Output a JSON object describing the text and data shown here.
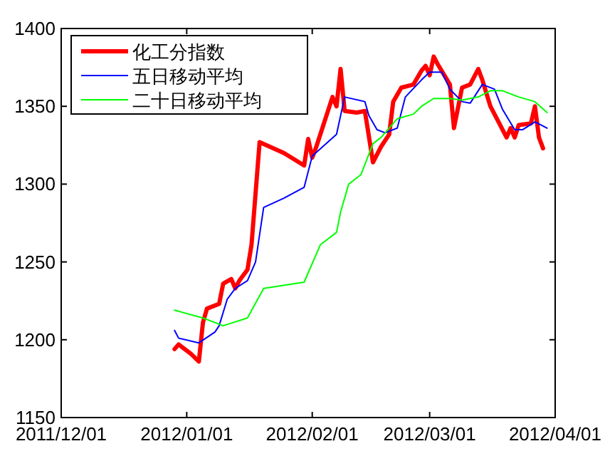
{
  "chart_data": {
    "type": "line",
    "legend": "top left",
    "grid": false,
    "xlim": [
      "2011-12-01",
      "2012-04-01"
    ],
    "xticks": [
      {
        "value": "2011-12-01",
        "label": "2011/12/01"
      },
      {
        "value": "2012-01-01",
        "label": "2012/01/01"
      },
      {
        "value": "2012-02-01",
        "label": "2012/02/01"
      },
      {
        "value": "2012-03-01",
        "label": "2012/03/01"
      },
      {
        "value": "2012-04-01",
        "label": "2012/04/01"
      }
    ],
    "ylim": [
      1150,
      1400
    ],
    "yticks": [
      1150,
      1200,
      1250,
      1300,
      1350,
      1400
    ],
    "series": [
      {
        "name": "化工分指数",
        "color": "#ff0000",
        "x": [
          "2011-12-29",
          "2011-12-30",
          "2012-01-02",
          "2012-01-04",
          "2012-01-05",
          "2012-01-06",
          "2012-01-09",
          "2012-01-10",
          "2012-01-12",
          "2012-01-13",
          "2012-01-14",
          "2012-01-16",
          "2012-01-17",
          "2012-01-19",
          "2012-01-25",
          "2012-01-30",
          "2012-01-31",
          "2012-02-01",
          "2012-02-02",
          "2012-02-05",
          "2012-02-06",
          "2012-02-07",
          "2012-02-08",
          "2012-02-09",
          "2012-02-12",
          "2012-02-14",
          "2012-02-16",
          "2012-02-18",
          "2012-02-20",
          "2012-02-21",
          "2012-02-23",
          "2012-02-26",
          "2012-02-28",
          "2012-02-29",
          "2012-03-01",
          "2012-03-02",
          "2012-03-03",
          "2012-03-06",
          "2012-03-07",
          "2012-03-09",
          "2012-03-11",
          "2012-03-13",
          "2012-03-14",
          "2012-03-16",
          "2012-03-20",
          "2012-03-21",
          "2012-03-22",
          "2012-03-23",
          "2012-03-26",
          "2012-03-27",
          "2012-03-28",
          "2012-03-29"
        ],
        "values": [
          1194,
          1197,
          1191,
          1186,
          1211,
          1220,
          1223,
          1236,
          1239,
          1233,
          1238,
          1245,
          1261,
          1327,
          1320,
          1312,
          1329,
          1317,
          1324,
          1348,
          1356,
          1350,
          1374,
          1347,
          1346,
          1347,
          1314,
          1324,
          1332,
          1353,
          1362,
          1364,
          1373,
          1376,
          1370,
          1382,
          1377,
          1364,
          1336,
          1362,
          1364,
          1374,
          1367,
          1350,
          1330,
          1336,
          1330,
          1338,
          1339,
          1350,
          1330,
          1323
        ]
      },
      {
        "name": "五日移动平均",
        "color": "#0000ff",
        "x": [
          "2011-12-29",
          "2011-12-30",
          "2012-01-04",
          "2012-01-08",
          "2012-01-09",
          "2012-01-11",
          "2012-01-13",
          "2012-01-16",
          "2012-01-18",
          "2012-01-20",
          "2012-01-25",
          "2012-01-30",
          "2012-02-01",
          "2012-02-07",
          "2012-02-09",
          "2012-02-14",
          "2012-02-15",
          "2012-02-17",
          "2012-02-19",
          "2012-02-22",
          "2012-02-24",
          "2012-02-28",
          "2012-03-01",
          "2012-03-04",
          "2012-03-06",
          "2012-03-09",
          "2012-03-11",
          "2012-03-14",
          "2012-03-17",
          "2012-03-19",
          "2012-03-22",
          "2012-03-24",
          "2012-03-27",
          "2012-03-30"
        ],
        "values": [
          1206,
          1201,
          1198,
          1205,
          1209,
          1226,
          1233,
          1238,
          1250,
          1285,
          1291,
          1298,
          1318,
          1332,
          1356,
          1353,
          1344,
          1335,
          1333,
          1336,
          1356,
          1367,
          1372,
          1372,
          1361,
          1353,
          1352,
          1364,
          1361,
          1348,
          1335,
          1335,
          1340,
          1336
        ]
      },
      {
        "name": "二十日移动平均",
        "color": "#00ff00",
        "x": [
          "2011-12-29",
          "2012-01-05",
          "2012-01-10",
          "2012-01-16",
          "2012-01-20",
          "2012-01-30",
          "2012-02-03",
          "2012-02-07",
          "2012-02-08",
          "2012-02-10",
          "2012-02-13",
          "2012-02-16",
          "2012-02-18",
          "2012-02-22",
          "2012-02-26",
          "2012-02-28",
          "2012-03-02",
          "2012-03-06",
          "2012-03-09",
          "2012-03-13",
          "2012-03-16",
          "2012-03-19",
          "2012-03-23",
          "2012-03-27",
          "2012-03-30"
        ],
        "values": [
          1219,
          1214,
          1209,
          1214,
          1233,
          1237,
          1261,
          1269,
          1282,
          1300,
          1306,
          1326,
          1330,
          1342,
          1345,
          1350,
          1355,
          1355,
          1354,
          1356,
          1360,
          1360,
          1356,
          1353,
          1346
        ]
      }
    ]
  }
}
